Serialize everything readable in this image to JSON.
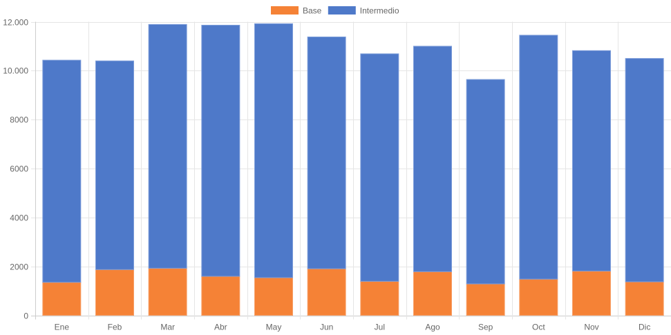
{
  "chart_data": {
    "type": "bar",
    "stacked": true,
    "title": "",
    "xlabel": "",
    "ylabel": "",
    "categories": [
      "Ene",
      "Feb",
      "Mar",
      "Abr",
      "May",
      "Jun",
      "Jul",
      "Ago",
      "Sep",
      "Oct",
      "Nov",
      "Dic"
    ],
    "series": [
      {
        "name": "Base",
        "color": "#f58236",
        "values": [
          1350,
          1870,
          1925,
          1595,
          1540,
          1905,
          1390,
          1785,
          1285,
          1480,
          1810,
          1370
        ]
      },
      {
        "name": "Intermedio",
        "color": "#4e79c9",
        "values": [
          9080,
          8530,
          9965,
          10265,
          10380,
          9475,
          9300,
          9215,
          8355,
          9970,
          9010,
          9130
        ]
      }
    ],
    "ylim": [
      0,
      12000
    ],
    "yticks": [
      0,
      2000,
      4000,
      6000,
      8000,
      10000,
      12000
    ],
    "ytick_labels": [
      "0",
      "2000",
      "4000",
      "6000",
      "8000",
      "10.000",
      "12.000"
    ],
    "grid": true,
    "legend_position": "top-center"
  }
}
